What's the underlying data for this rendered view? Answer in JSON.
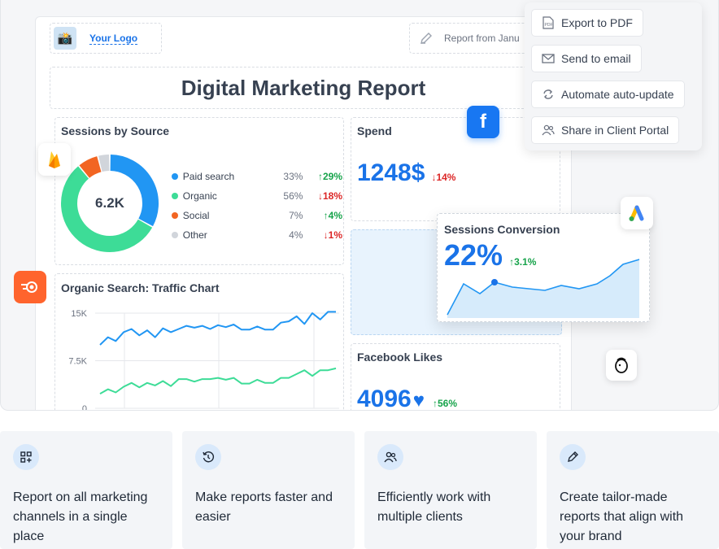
{
  "header": {
    "logo_text": "Your Logo",
    "report_from": "Report from Janu",
    "title": "Digital Marketing Report"
  },
  "sessions_by_source": {
    "title": "Sessions by Source",
    "center_value": "6.2K",
    "items": [
      {
        "name": "Paid search",
        "percent": "33%",
        "change": "29%",
        "direction": "up",
        "color": "#2196f3"
      },
      {
        "name": "Organic",
        "percent": "56%",
        "change": "18%",
        "direction": "down",
        "color": "#3ddc97"
      },
      {
        "name": "Social",
        "percent": "7%",
        "change": "4%",
        "direction": "up",
        "color": "#f26522"
      },
      {
        "name": "Other",
        "percent": "4%",
        "change": "1%",
        "direction": "down",
        "color": "#d1d5db"
      }
    ]
  },
  "spend": {
    "title": "Spend",
    "value": "1248$",
    "change": "14%",
    "direction": "down"
  },
  "organic_chart": {
    "title": "Organic Search: Traffic Chart",
    "y_ticks": [
      "15K",
      "7.5K",
      "0"
    ]
  },
  "facebook_likes": {
    "title": "Facebook Likes",
    "value": "4096",
    "change": "56%"
  },
  "sessions_conversion": {
    "title": "Sessions Conversion",
    "value": "22%",
    "change": "3.1%"
  },
  "actions": {
    "export_pdf": "Export to PDF",
    "send_email": "Send to email",
    "automate": "Automate auto-update",
    "share_portal": "Share in Client Portal"
  },
  "features": [
    {
      "text": "Report on all marketing channels in a single place",
      "icon": "grid-plus-icon"
    },
    {
      "text": "Make reports faster and easier",
      "icon": "clock-refresh-icon"
    },
    {
      "text": "Efficiently work with multiple clients",
      "icon": "users-icon"
    },
    {
      "text": "Create tailor-made reports that align with your brand",
      "icon": "pen-edit-icon"
    }
  ],
  "chart_data": {
    "type": "line",
    "series": [
      {
        "values": [
          10.0,
          11.2,
          10.6,
          12.0,
          12.5,
          11.5,
          12.3,
          11.2,
          12.6,
          12.0,
          12.5,
          13.0,
          12.7,
          13.0,
          12.5,
          13.1,
          12.8,
          13.2,
          12.4,
          12.4,
          12.9,
          12.4,
          12.4,
          13.5,
          13.7,
          14.5,
          13.3,
          15.0,
          14.0,
          15.2,
          15.2
        ]
      },
      {
        "values": [
          2.3,
          3.0,
          2.5,
          3.4,
          4.0,
          3.3,
          4.0,
          3.6,
          4.3,
          3.5,
          4.6,
          4.6,
          4.2,
          4.6,
          4.6,
          4.8,
          4.5,
          4.8,
          3.9,
          3.9,
          4.5,
          4.0,
          4.0,
          4.8,
          4.8,
          5.4,
          6.0,
          5.1,
          6.0,
          6.0,
          6.3
        ]
      }
    ],
    "y_ticks": [
      "15K",
      "7.5K",
      "0"
    ],
    "ylim": [
      0,
      15
    ],
    "grid": true
  }
}
